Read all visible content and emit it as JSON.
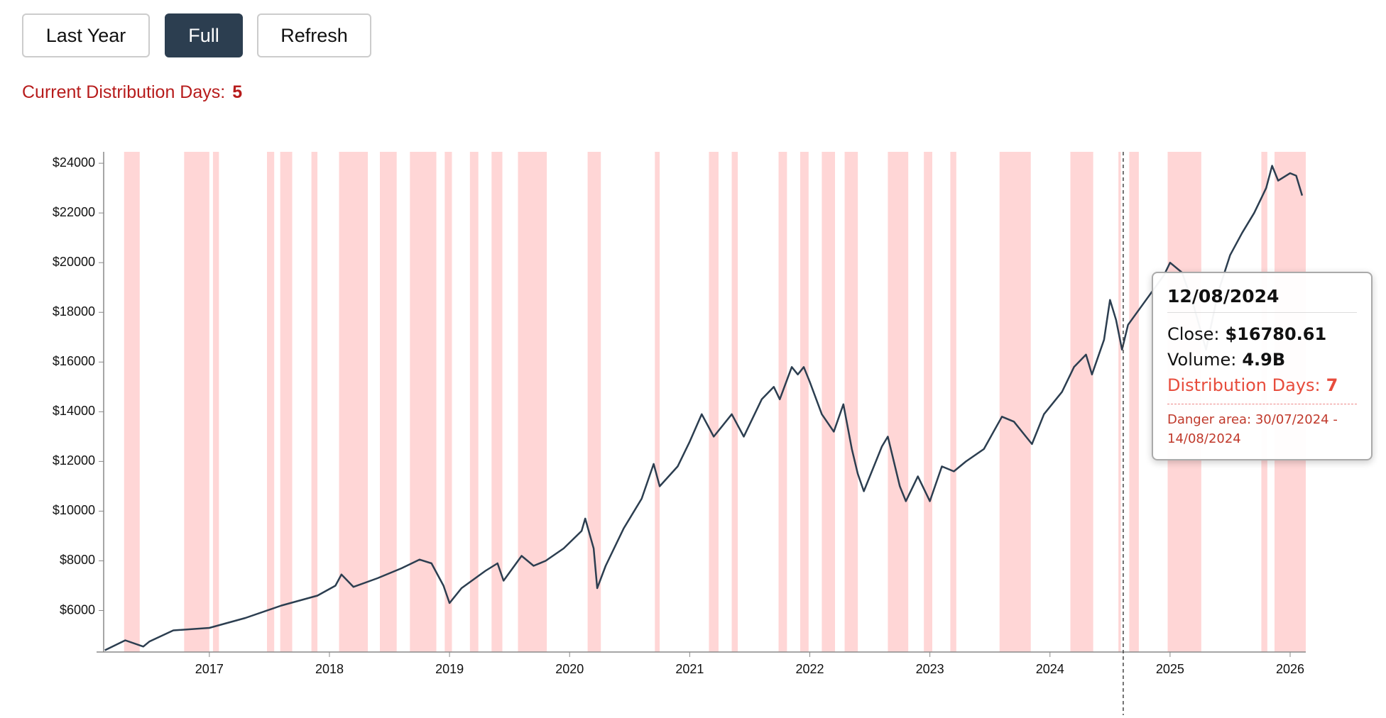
{
  "buttons": [
    "Last Year",
    "Full",
    "Refresh"
  ],
  "distribution": {
    "label": "Current Distribution Days:",
    "value": 5
  },
  "tooltip": {
    "x": 2024.61,
    "date": "12/08/2024",
    "close_label": "Close:",
    "close": "$16780.61",
    "volume_label": "Volume:",
    "volume": "4.9B",
    "dist_label": "Distribution Days:",
    "dist": 7,
    "danger": "Danger area: 30/07/2024 - 14/08/2024"
  },
  "chart_data": {
    "type": "line",
    "color": "#2c3e50",
    "band_color": "#ffd6d6",
    "x": [
      2016.13,
      2016.3,
      2016.45,
      2016.5,
      2016.7,
      2017.0,
      2017.3,
      2017.6,
      2017.9,
      2018.05,
      2018.1,
      2018.2,
      2018.4,
      2018.6,
      2018.75,
      2018.85,
      2018.95,
      2019.0,
      2019.1,
      2019.3,
      2019.4,
      2019.45,
      2019.6,
      2019.7,
      2019.8,
      2019.95,
      2020.1,
      2020.13,
      2020.2,
      2020.23,
      2020.3,
      2020.45,
      2020.6,
      2020.7,
      2020.75,
      2020.9,
      2021.0,
      2021.1,
      2021.2,
      2021.35,
      2021.45,
      2021.6,
      2021.7,
      2021.75,
      2021.85,
      2021.9,
      2021.95,
      2022.0,
      2022.1,
      2022.2,
      2022.28,
      2022.35,
      2022.4,
      2022.45,
      2022.6,
      2022.65,
      2022.75,
      2022.8,
      2022.9,
      2023.0,
      2023.1,
      2023.2,
      2023.3,
      2023.45,
      2023.6,
      2023.7,
      2023.8,
      2023.85,
      2023.95,
      2024.1,
      2024.2,
      2024.3,
      2024.35,
      2024.45,
      2024.5,
      2024.55,
      2024.6,
      2024.65,
      2024.8,
      2024.95,
      2025.0,
      2025.1,
      2025.2,
      2025.3,
      2025.4,
      2025.5,
      2025.6,
      2025.7,
      2025.8,
      2025.85,
      2025.9,
      2026.0,
      2026.05,
      2026.1
    ],
    "values": [
      4400,
      4800,
      4550,
      4750,
      5200,
      5300,
      5700,
      6200,
      6600,
      7000,
      7450,
      6950,
      7300,
      7700,
      8050,
      7900,
      7000,
      6300,
      6900,
      7600,
      7900,
      7200,
      8200,
      7800,
      8000,
      8500,
      9200,
      9700,
      8500,
      6900,
      7800,
      9300,
      10500,
      11900,
      11000,
      11800,
      12800,
      13900,
      13000,
      13900,
      13000,
      14500,
      15000,
      14500,
      15800,
      15500,
      15800,
      15200,
      13900,
      13200,
      14300,
      12500,
      11500,
      10800,
      12600,
      13000,
      11000,
      10400,
      11400,
      10400,
      11800,
      11600,
      12000,
      12500,
      13800,
      13600,
      13000,
      12700,
      13900,
      14800,
      15800,
      16300,
      15500,
      16900,
      18500,
      17700,
      16500,
      17500,
      18500,
      19500,
      20000,
      19600,
      18200,
      16500,
      18800,
      20300,
      21200,
      22000,
      23000,
      23900,
      23300,
      23600,
      23500,
      22700
    ],
    "bands": [
      [
        2016.29,
        2016.42
      ],
      [
        2016.79,
        2017.0
      ],
      [
        2017.03,
        2017.08
      ],
      [
        2017.48,
        2017.54
      ],
      [
        2017.59,
        2017.69
      ],
      [
        2017.85,
        2017.9
      ],
      [
        2018.08,
        2018.32
      ],
      [
        2018.42,
        2018.56
      ],
      [
        2018.67,
        2018.89
      ],
      [
        2018.96,
        2019.02
      ],
      [
        2019.17,
        2019.24
      ],
      [
        2019.35,
        2019.44
      ],
      [
        2019.57,
        2019.81
      ],
      [
        2020.15,
        2020.26
      ],
      [
        2020.71,
        2020.75
      ],
      [
        2021.16,
        2021.24
      ],
      [
        2021.35,
        2021.4
      ],
      [
        2021.74,
        2021.81
      ],
      [
        2021.92,
        2021.99
      ],
      [
        2022.1,
        2022.21
      ],
      [
        2022.29,
        2022.4
      ],
      [
        2022.65,
        2022.82
      ],
      [
        2022.95,
        2023.02
      ],
      [
        2023.17,
        2023.22
      ],
      [
        2023.58,
        2023.84
      ],
      [
        2024.17,
        2024.36
      ],
      [
        2024.57,
        2024.59
      ],
      [
        2024.66,
        2024.74
      ],
      [
        2024.98,
        2025.26
      ],
      [
        2025.76,
        2025.81
      ],
      [
        2025.87,
        2026.13
      ]
    ],
    "xlim": [
      2016.12,
      2026.13
    ],
    "xticks": [
      2017,
      2018,
      2019,
      2020,
      2021,
      2022,
      2023,
      2024,
      2025,
      2026
    ],
    "ylim": [
      4330,
      24460
    ],
    "yticks": [
      {
        "value": 6000,
        "label": "$6000"
      },
      {
        "value": 8000,
        "label": "$8000"
      },
      {
        "value": 10000,
        "label": "$10000"
      },
      {
        "value": 12000,
        "label": "$12000"
      },
      {
        "value": 14000,
        "label": "$14000"
      },
      {
        "value": 16000,
        "label": "$16000"
      },
      {
        "value": 18000,
        "label": "$18000"
      },
      {
        "value": 20000,
        "label": "$20000"
      },
      {
        "value": 22000,
        "label": "$22000"
      },
      {
        "value": 24000,
        "label": "$24000"
      }
    ]
  }
}
